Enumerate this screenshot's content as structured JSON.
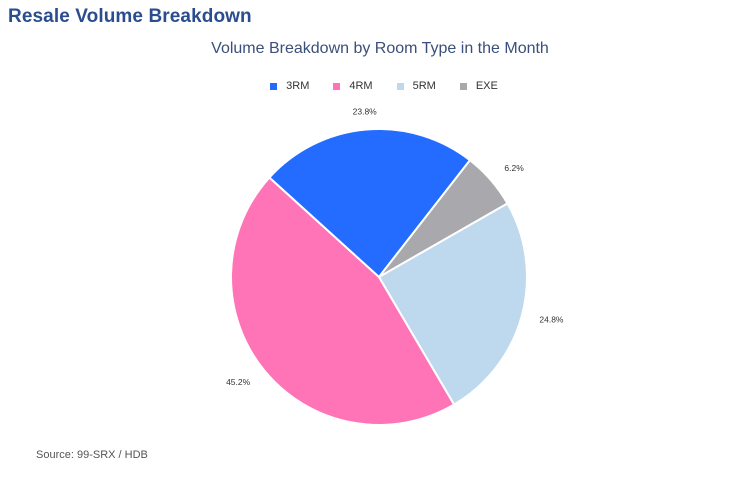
{
  "page": {
    "title": "Resale Volume Breakdown",
    "source": "Source: 99-SRX / HDB"
  },
  "chart_data": {
    "type": "pie",
    "title": "Volume Breakdown by Room Type in the Month",
    "legend_position": "top",
    "categories": [
      "3RM",
      "4RM",
      "5RM",
      "EXE"
    ],
    "values": [
      23.8,
      45.2,
      24.8,
      6.2
    ],
    "labels": [
      "23.8%",
      "45.2%",
      "24.8%",
      "6.2%"
    ],
    "colors": [
      "#236cff",
      "#ff74b6",
      "#bed8ee",
      "#a9a9ad"
    ]
  }
}
